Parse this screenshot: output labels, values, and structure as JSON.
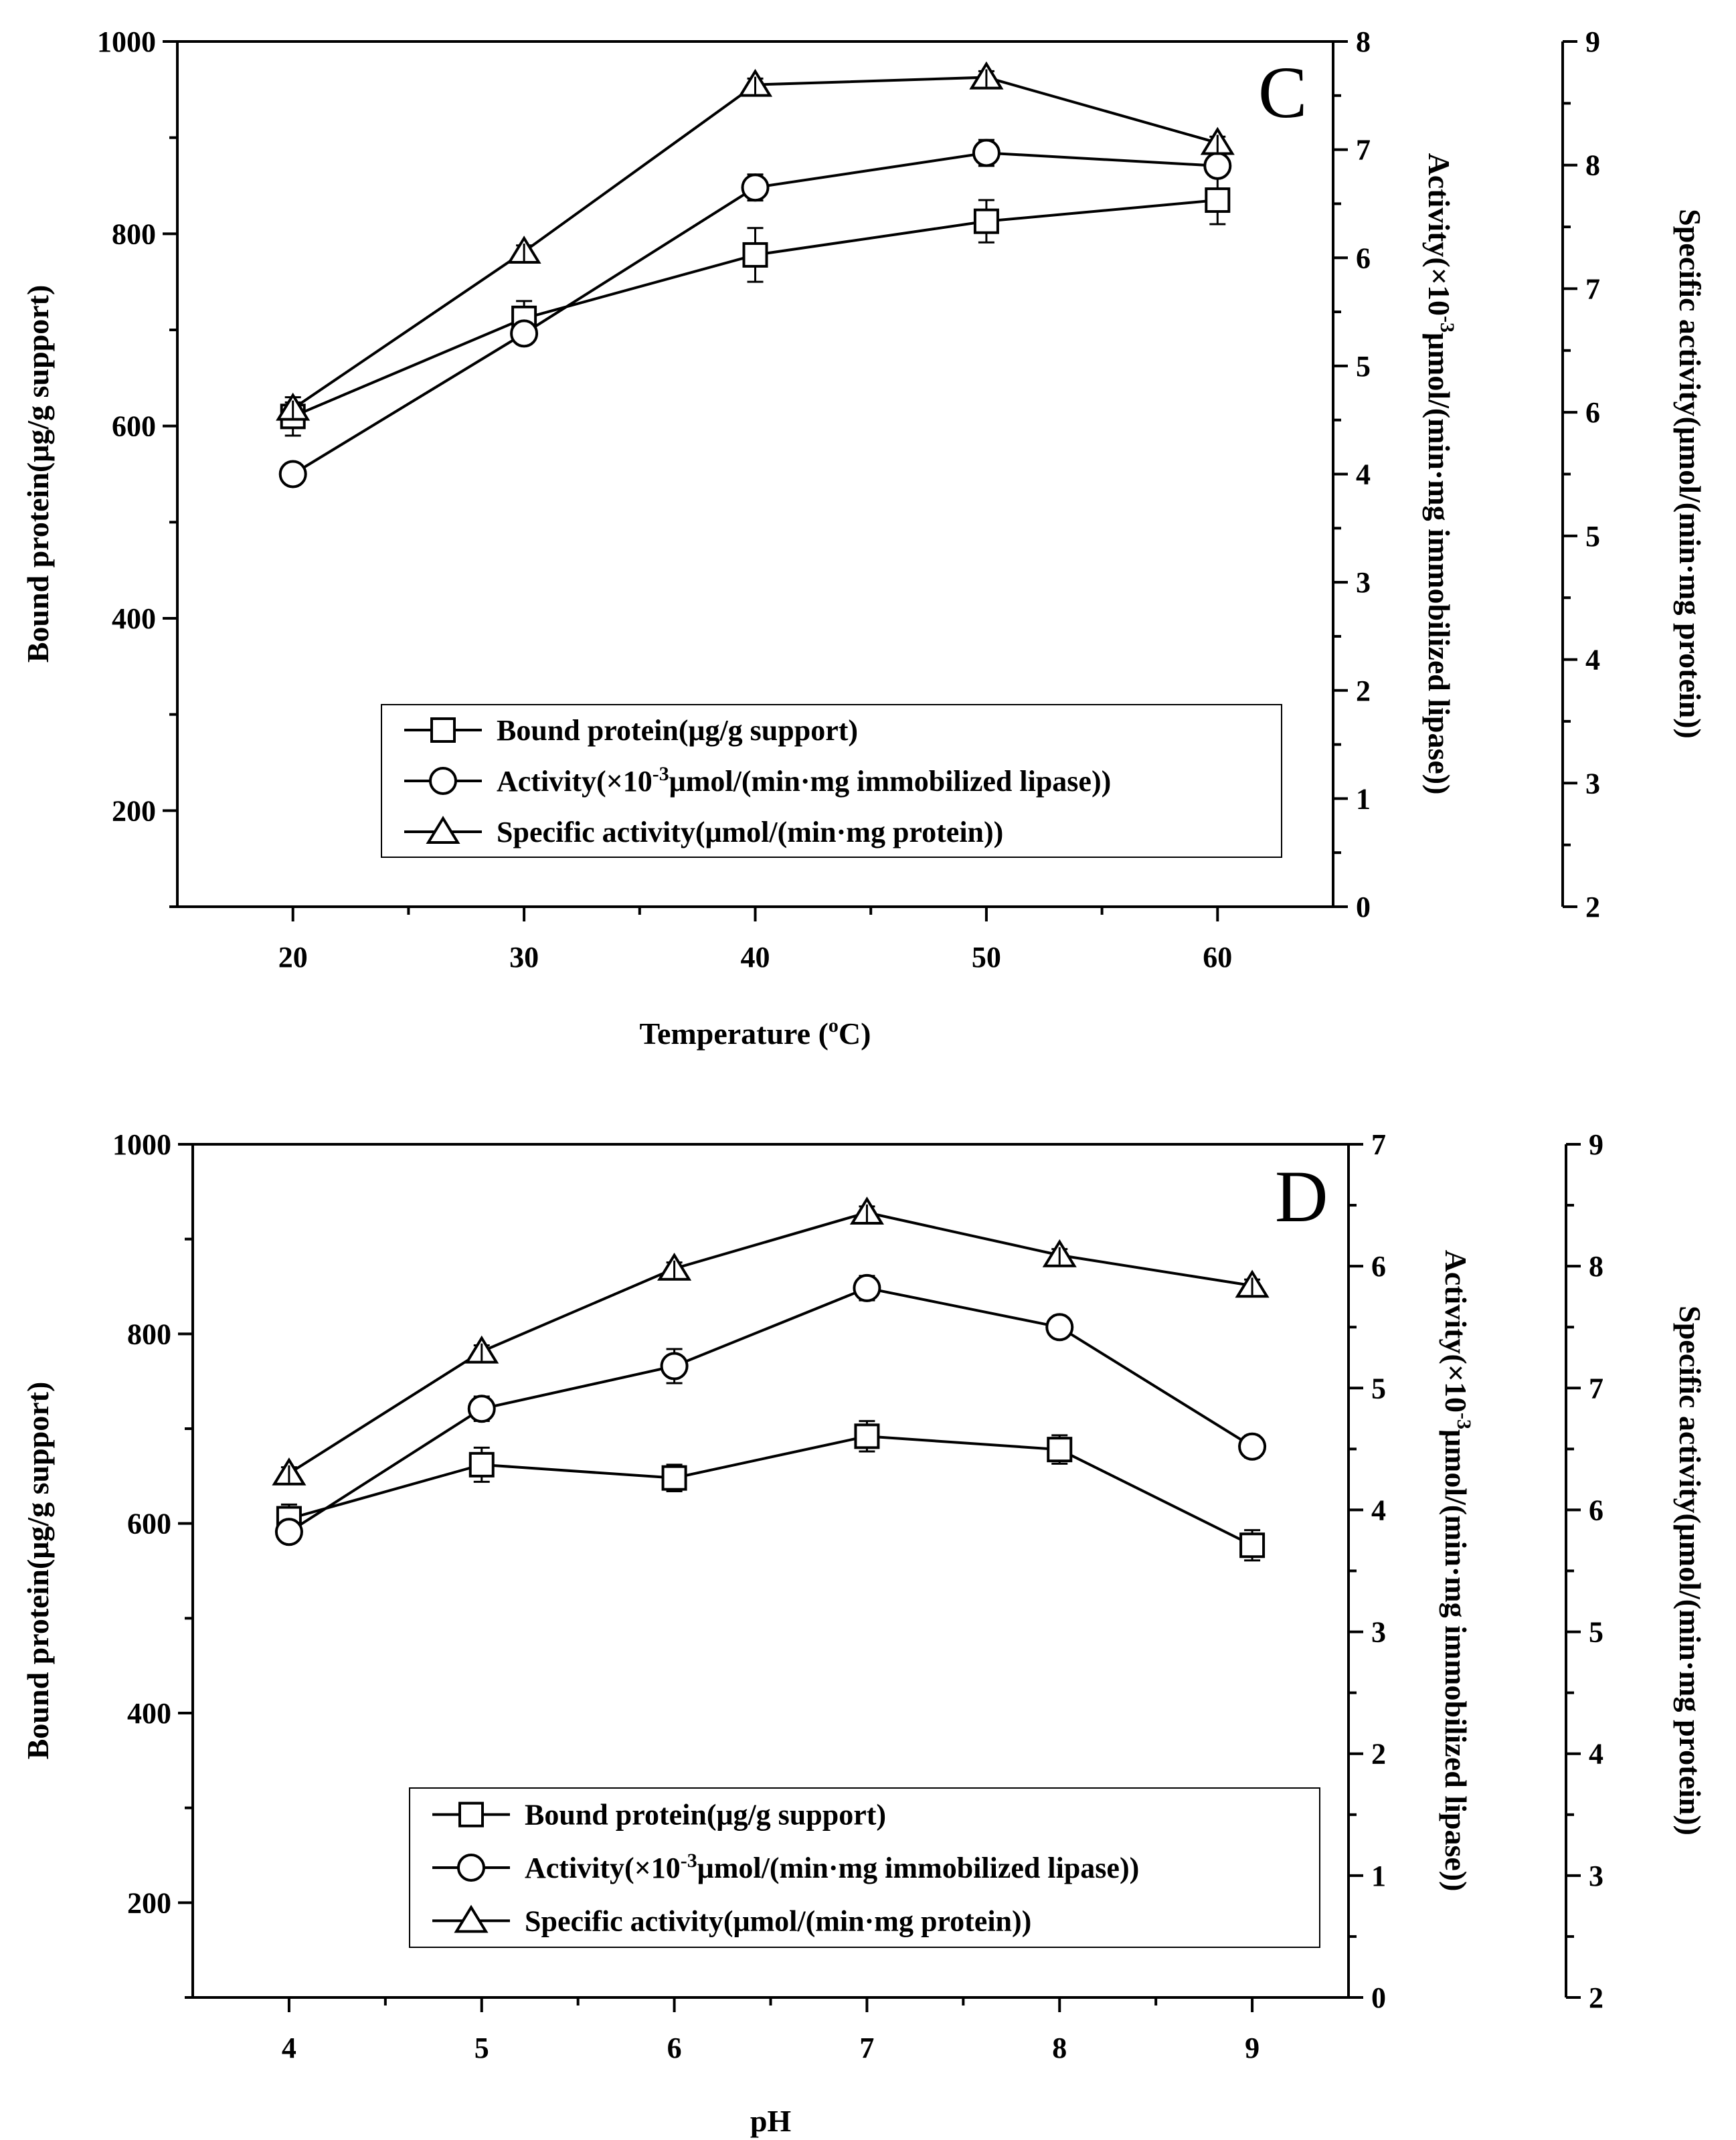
{
  "chart_data": [
    {
      "type": "line",
      "panel_label": "C",
      "xlabel": "Temperature (",
      "xlabel_sup": "o",
      "xlabel_end": "C)",
      "x": [
        20,
        30,
        40,
        50,
        60
      ],
      "x_ticks": [
        "20",
        "30",
        "40",
        "50",
        "60"
      ],
      "xlim": [
        15,
        65
      ],
      "axes": [
        {
          "id": "left",
          "title": "Bound protein(μg/g support)",
          "lim": [
            100,
            1000
          ],
          "ticks": [
            "200",
            "400",
            "600",
            "800",
            "1000"
          ],
          "tick_values": [
            200,
            400,
            600,
            800,
            1000
          ]
        },
        {
          "id": "right1",
          "title_pre": "Activity(×10",
          "title_sup": "-3",
          "title_post": "μmol/(min·mg immobilized lipase))",
          "lim": [
            0,
            8
          ],
          "ticks": [
            "0",
            "1",
            "2",
            "3",
            "4",
            "5",
            "6",
            "7",
            "8"
          ],
          "tick_values": [
            0,
            1,
            2,
            3,
            4,
            5,
            6,
            7,
            8
          ]
        },
        {
          "id": "right2",
          "title": "Specific activity(μmol/(min·mg protein))",
          "lim": [
            2,
            9
          ],
          "ticks": [
            "2",
            "3",
            "4",
            "5",
            "6",
            "7",
            "8",
            "9"
          ],
          "tick_values": [
            2,
            3,
            4,
            5,
            6,
            7,
            8,
            9
          ]
        }
      ],
      "series": [
        {
          "name": "Bound protein(μg/g support)",
          "marker": "square",
          "axis": "left",
          "values": [
            610,
            712,
            778,
            813,
            835
          ],
          "errors": [
            20,
            18,
            28,
            22,
            25
          ]
        },
        {
          "name_pre": "Activity(×10",
          "name_sup": "-3",
          "name_post": "μmol/(min·mg immobilized lipase))",
          "marker": "circle",
          "axis": "right1",
          "values": [
            4.0,
            5.3,
            6.65,
            6.97,
            6.85
          ],
          "errors": [
            0.1,
            0.1,
            0.12,
            0.12,
            0.1
          ]
        },
        {
          "name": "Specific activity(μmol/(min·mg protein))",
          "marker": "triangle",
          "axis": "right2",
          "values": [
            6.03,
            7.3,
            8.65,
            8.71,
            8.18
          ],
          "errors": [
            0.05,
            0.05,
            0.05,
            0.05,
            0.05
          ]
        }
      ]
    },
    {
      "type": "line",
      "panel_label": "D",
      "xlabel": "pH",
      "x": [
        4,
        5,
        6,
        7,
        8,
        9
      ],
      "x_ticks": [
        "4",
        "5",
        "6",
        "7",
        "8",
        "9"
      ],
      "xlim": [
        3.5,
        9.5
      ],
      "axes": [
        {
          "id": "left",
          "title": "Bound protein(μg/g support)",
          "lim": [
            100,
            1000
          ],
          "ticks": [
            "200",
            "400",
            "600",
            "800",
            "1000"
          ],
          "tick_values": [
            200,
            400,
            600,
            800,
            1000
          ]
        },
        {
          "id": "right1",
          "title_pre": "Activity(×10",
          "title_sup": "-3",
          "title_post": "μmol/(min·mg immobilized lipase))",
          "lim": [
            0,
            7
          ],
          "ticks": [
            "0",
            "1",
            "2",
            "3",
            "4",
            "5",
            "6",
            "7"
          ],
          "tick_values": [
            0,
            1,
            2,
            3,
            4,
            5,
            6,
            7
          ]
        },
        {
          "id": "right2",
          "title": "Specific activity(μmol/(min·mg protein))",
          "lim": [
            2,
            9
          ],
          "ticks": [
            "2",
            "3",
            "4",
            "5",
            "6",
            "7",
            "8",
            "9"
          ],
          "tick_values": [
            2,
            3,
            4,
            5,
            6,
            7,
            8,
            9
          ]
        }
      ],
      "series": [
        {
          "name": "Bound protein(μg/g support)",
          "marker": "square",
          "axis": "left",
          "values": [
            605,
            662,
            648,
            692,
            678,
            577
          ],
          "errors": [
            15,
            18,
            14,
            16,
            15,
            16
          ]
        },
        {
          "name_pre": "Activity(×10",
          "name_sup": "-3",
          "name_post": "μmol/(min·mg immobilized lipase))",
          "marker": "circle",
          "axis": "right1",
          "values": [
            3.82,
            4.83,
            5.18,
            5.82,
            5.5,
            4.52
          ],
          "errors": [
            0.08,
            0.1,
            0.14,
            0.1,
            0.08,
            0.09
          ]
        },
        {
          "name": "Specific activity(μmol/(min·mg protein))",
          "marker": "triangle",
          "axis": "right2",
          "values": [
            6.3,
            7.3,
            7.98,
            8.44,
            8.09,
            7.84
          ],
          "errors": [
            0.05,
            0.05,
            0.05,
            0.05,
            0.05,
            0.05
          ]
        }
      ]
    }
  ]
}
